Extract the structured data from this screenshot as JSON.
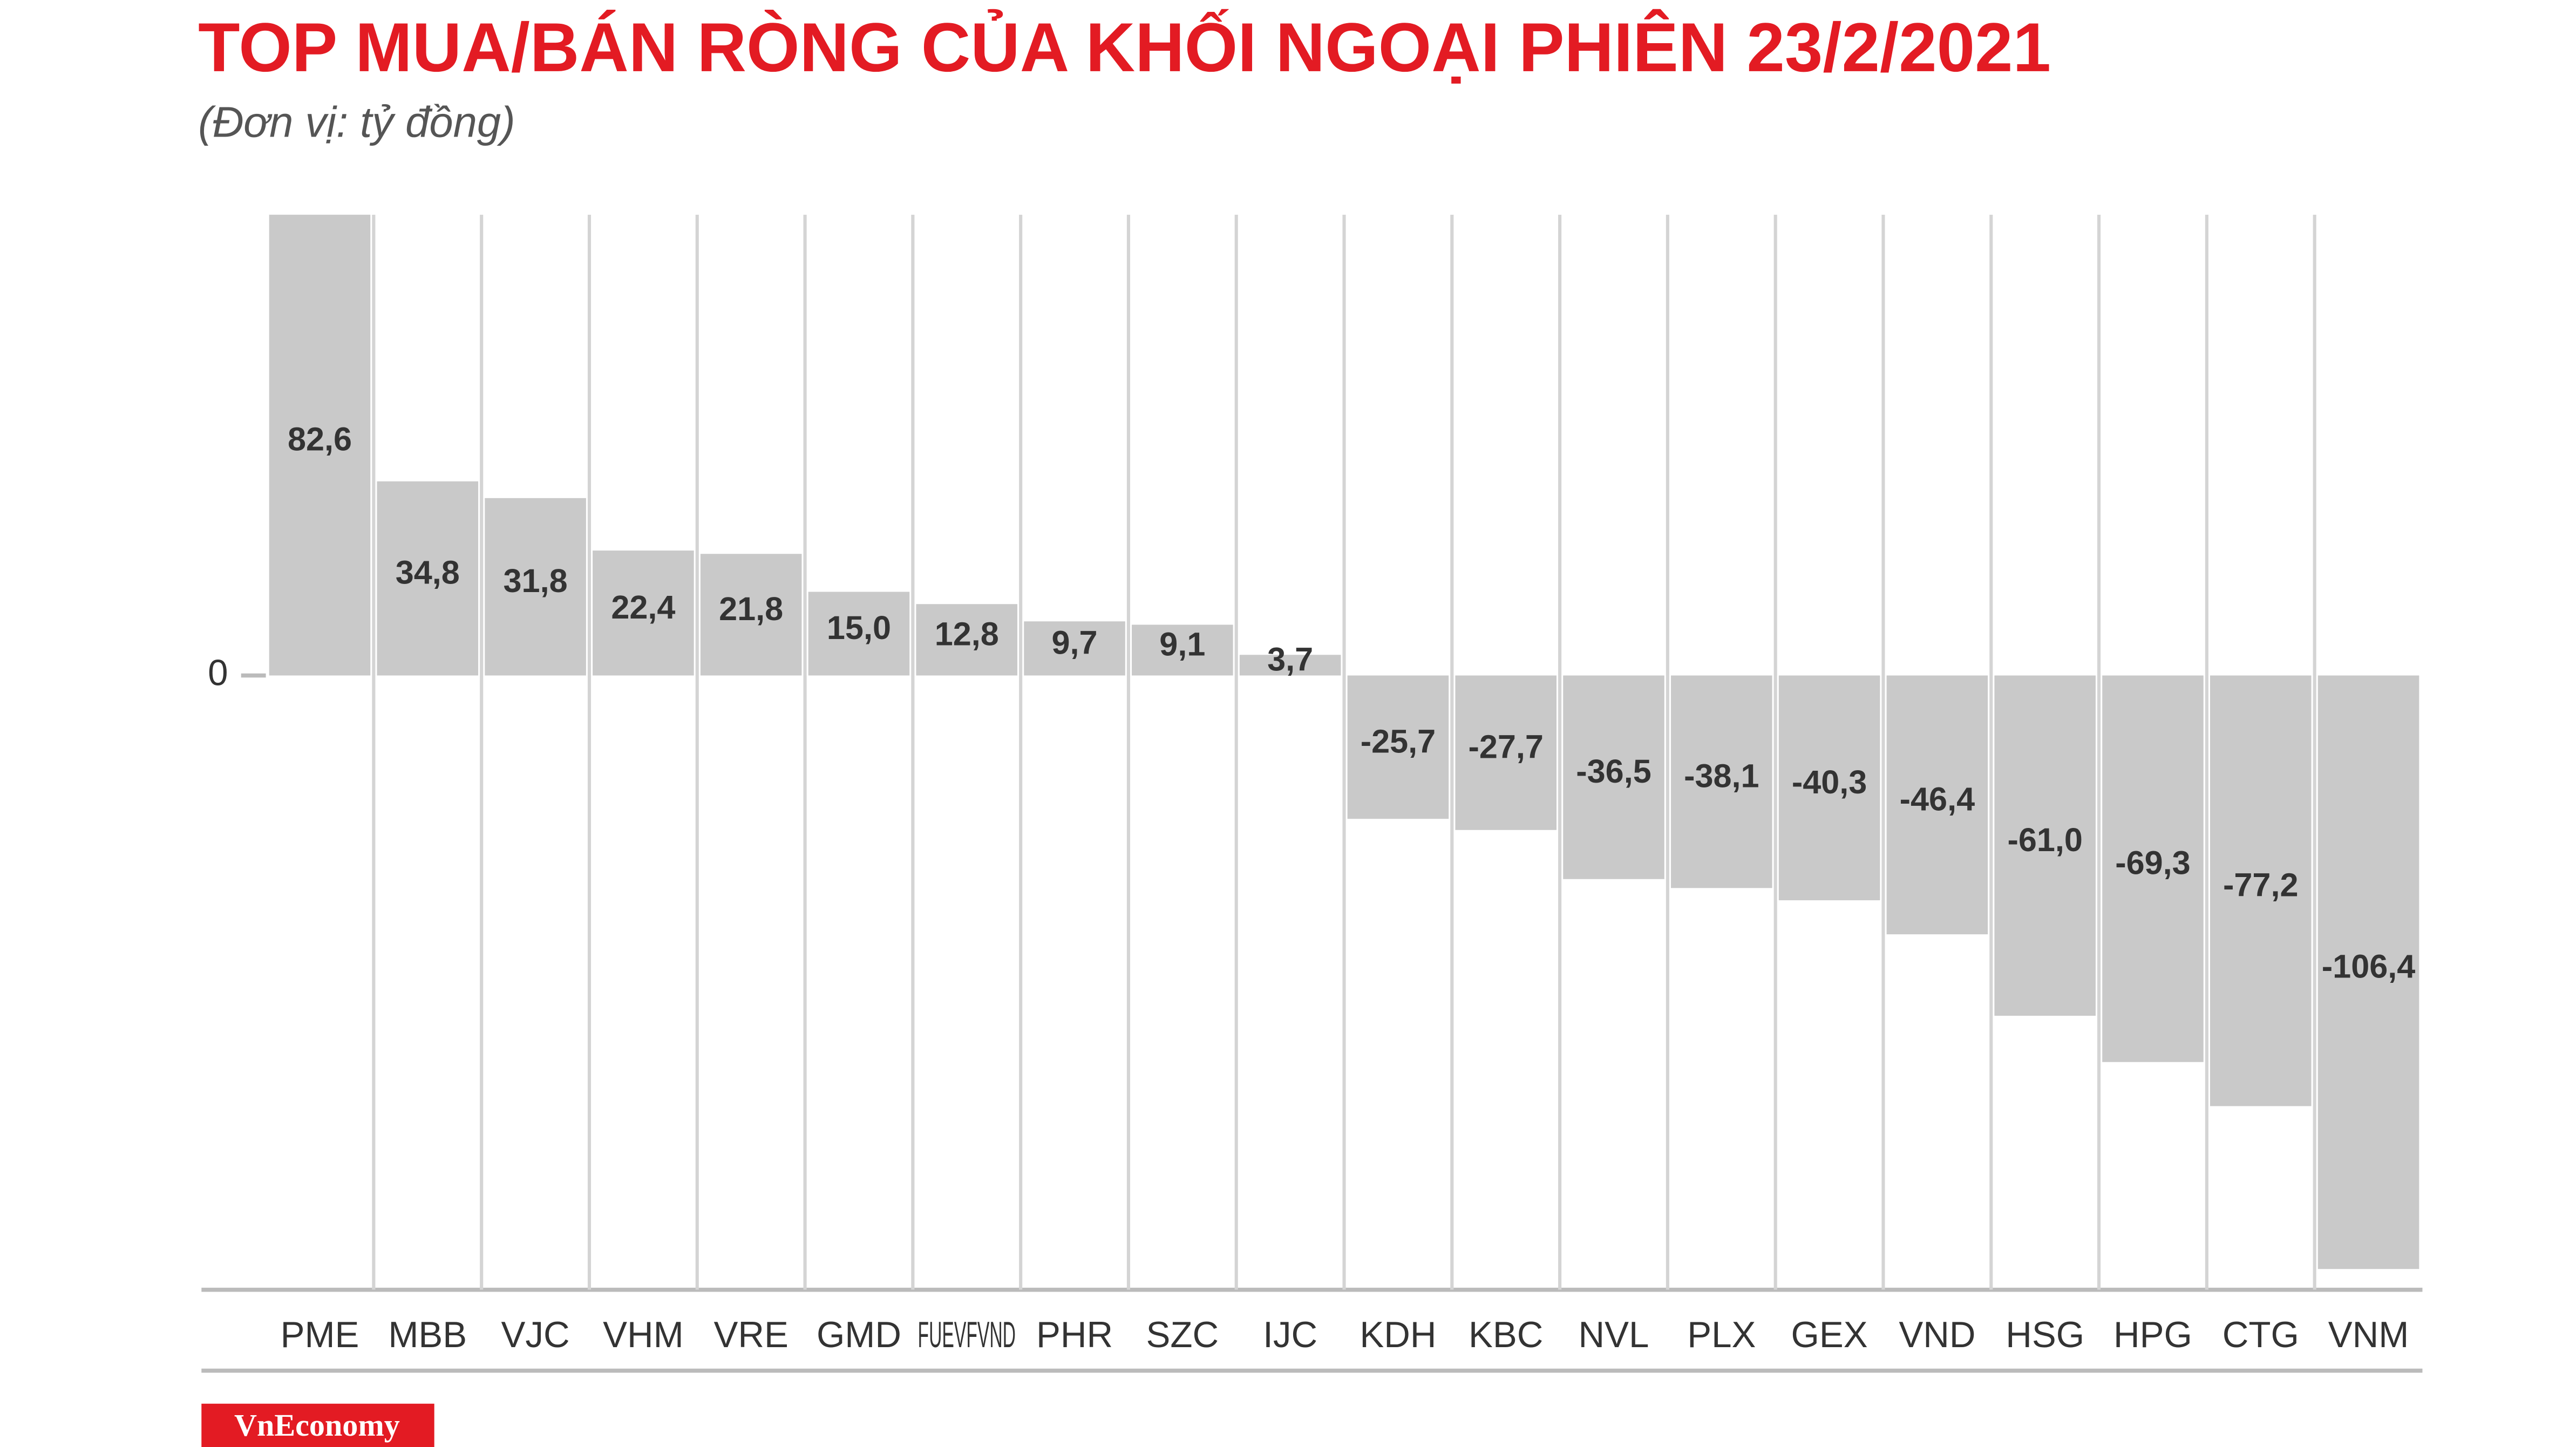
{
  "chart_data": {
    "type": "bar",
    "title": "TOP MUA/BÁN RÒNG CỦA KHỐI NGOẠI PHIÊN 23/2/2021",
    "subtitle": "(Đơn vị: tỷ đồng)",
    "source": "VnEconomy",
    "categories": [
      "PME",
      "MBB",
      "VJC",
      "VHM",
      "VRE",
      "GMD",
      "FUEVFVND",
      "PHR",
      "SZC",
      "IJC",
      "KDH",
      "KBC",
      "NVL",
      "PLX",
      "GEX",
      "VND",
      "HSG",
      "HPG",
      "CTG",
      "VNM"
    ],
    "values": [
      82.6,
      34.8,
      31.8,
      22.4,
      21.8,
      15.0,
      12.8,
      9.7,
      9.1,
      3.7,
      -25.7,
      -27.7,
      -36.5,
      -38.1,
      -40.3,
      -46.4,
      -61.0,
      -69.3,
      -77.2,
      -106.4
    ],
    "value_labels": [
      "82,6",
      "34,8",
      "31,8",
      "22,4",
      "21,8",
      "15,0",
      "12,8",
      "9,7",
      "9,1",
      "3,7",
      "-25,7",
      "-27,7",
      "-36,5",
      "-38,1",
      "-40,3",
      "-46,4",
      "-61,0",
      "-69,3",
      "-77,2",
      "-106,4"
    ],
    "color": "#c9c9c9",
    "ylim": [
      -110,
      82.6
    ],
    "yticks": [
      0
    ]
  }
}
